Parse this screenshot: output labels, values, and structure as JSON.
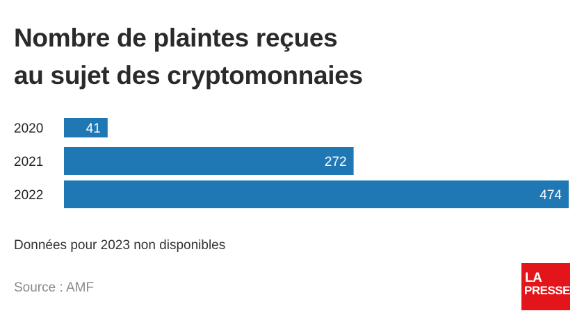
{
  "header": {
    "title_line1": "Nombre de plaintes reçues",
    "title_line2": "au sujet des cryptomonnaies"
  },
  "chart_data": {
    "type": "bar",
    "orientation": "horizontal",
    "categories": [
      "2020",
      "2021",
      "2022"
    ],
    "values": [
      41,
      272,
      474
    ],
    "title": "Nombre de plaintes reçues au sujet des cryptomonnaies",
    "xlabel": "",
    "ylabel": "",
    "xlim": [
      0,
      474
    ],
    "grid": false,
    "bar_color": "#1f78b4",
    "value_label_color": "#ffffff"
  },
  "footer": {
    "note": "Données pour 2023 non disponibles",
    "source": "Source : AMF",
    "logo_line1": "LA",
    "logo_line2": "PRESSE"
  },
  "colors": {
    "bar": "#1f78b4",
    "brand": "#e3151a"
  }
}
